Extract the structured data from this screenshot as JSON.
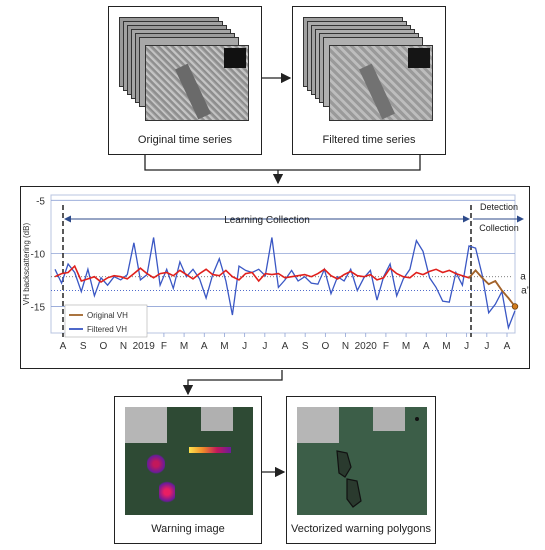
{
  "top": {
    "original_caption": "Original time series",
    "filtered_caption": "Filtered time series"
  },
  "chart_data": {
    "type": "line",
    "ylabel": "VH backscattering (dB)",
    "ylim": [
      -17.5,
      -4.5
    ],
    "yticks": [
      -5,
      -10,
      -15
    ],
    "ytick_labels": [
      "-5",
      "-10",
      "-15"
    ],
    "month_labels": [
      "A",
      "S",
      "O",
      "N",
      "2019",
      "F",
      "M",
      "A",
      "M",
      "J",
      "J",
      "A",
      "S",
      "O",
      "N",
      "2020",
      "F",
      "M",
      "A",
      "M",
      "J",
      "J",
      "A"
    ],
    "learning_label": "Learning Collection",
    "detection_label_1": "Detection",
    "detection_label_2": "Collection",
    "ref_line_a": "a",
    "ref_line_a_prime": "a’",
    "ref_a_value": -12.2,
    "ref_a_prime_value": -13.5,
    "grid": true,
    "legend_position": "bottom-left",
    "series": [
      {
        "name": "Original VH",
        "color": "#e0201c",
        "values": [
          -12.2,
          -11.9,
          -11.8,
          -11.2,
          -12.6,
          -12.4,
          -12.2,
          -12.7,
          -12.3,
          -12.1,
          -12.2,
          -12.4,
          -11.9,
          -11.4,
          -11.9,
          -12.3,
          -11.9,
          -11.8,
          -12.1,
          -11.6,
          -12.0,
          -12.4,
          -11.9,
          -11.5,
          -12.0,
          -12.1,
          -11.6,
          -12.2,
          -12.5,
          -11.9,
          -11.8,
          -12.6,
          -11.9,
          -12.0,
          -11.9,
          -12.3,
          -12.2,
          -12.1,
          -12.0,
          -12.2,
          -11.9,
          -11.5,
          -12.1,
          -12.4,
          -12.0,
          -11.7,
          -12.1,
          -12.2,
          -12.0,
          -12.5,
          -12.3,
          -11.4,
          -11.9,
          -12.2,
          -12.3,
          -11.8,
          -12.0,
          -11.7,
          -11.5,
          -11.8,
          -11.6,
          -11.9,
          -12.1,
          -12.3,
          -11.6,
          -12.3,
          -12.9,
          -12.6,
          -13.5,
          -14.2,
          -15.0
        ]
      },
      {
        "name": "Filtered VH",
        "color": "#3a57c4",
        "values": [
          -11.5,
          -12.8,
          -11.0,
          -11.8,
          -13.6,
          -11.5,
          -14.0,
          -12.3,
          -13.0,
          -12.2,
          -12.5,
          -12.0,
          -9.0,
          -12.5,
          -12.0,
          -8.5,
          -13.0,
          -11.5,
          -13.3,
          -10.8,
          -12.2,
          -11.5,
          -12.4,
          -14.2,
          -12.0,
          -10.5,
          -12.6,
          -15.8,
          -11.2,
          -11.6,
          -11.8,
          -11.5,
          -12.1,
          -8.5,
          -13.2,
          -12.5,
          -11.6,
          -12.6,
          -12.2,
          -12.8,
          -12.9,
          -11.5,
          -13.8,
          -12.2,
          -12.6,
          -11.5,
          -13.5,
          -12.3,
          -11.6,
          -14.4,
          -12.2,
          -11.0,
          -14.0,
          -12.4,
          -11.5,
          -8.8,
          -9.8,
          -12.3,
          -13.2,
          -14.5,
          -14.6,
          -11.8,
          -13.0,
          -9.3,
          -9.5,
          -12.0,
          -15.6,
          -14.8,
          -13.6,
          -17.0,
          -15.4
        ]
      }
    ]
  },
  "bottom": {
    "warning_caption": "Warning image",
    "polygons_caption": "Vectorized warning polygons"
  }
}
